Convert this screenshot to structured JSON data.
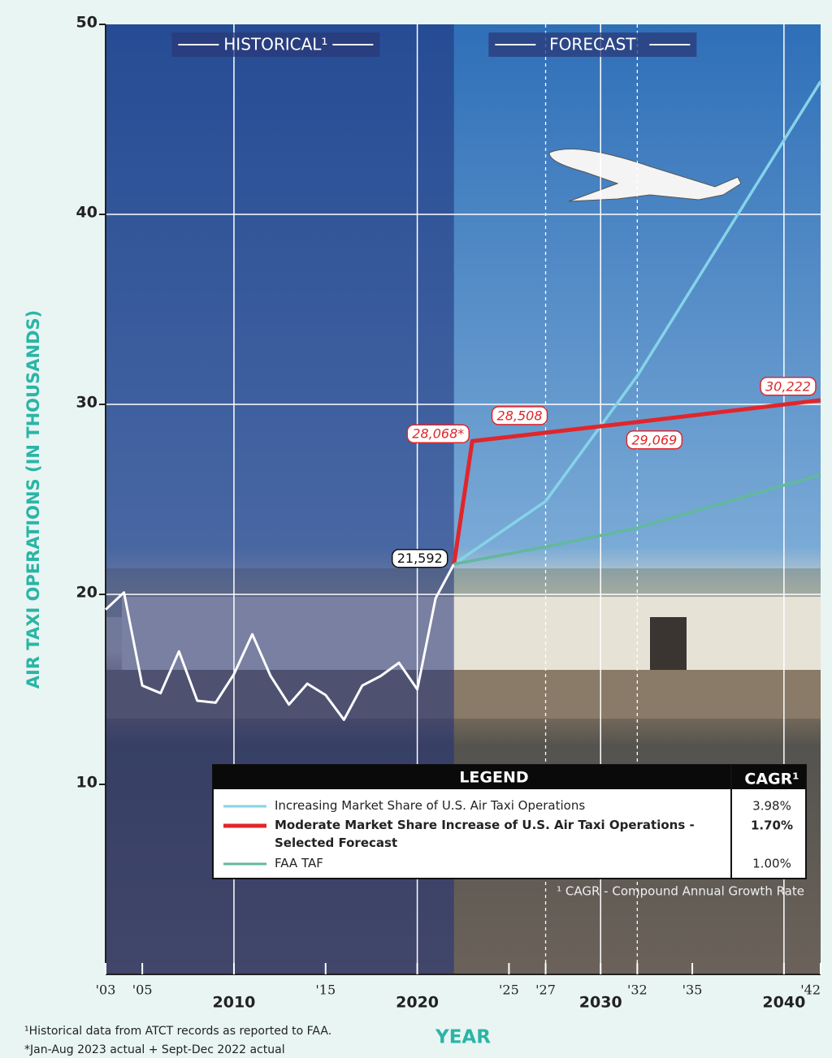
{
  "chart_data": {
    "type": "line",
    "y_label": "AIR TAXI OPERATIONS (IN THOUSANDS)",
    "x_label": "YEAR",
    "xlim": [
      2003,
      2042
    ],
    "ylim": [
      0,
      50
    ],
    "yticks": [
      10,
      20,
      30,
      40,
      50
    ],
    "xticks": [
      {
        "value": 2003,
        "label": "'03"
      },
      {
        "value": 2005,
        "label": "'05"
      },
      2010,
      {
        "value": 2015,
        "label": "'15"
      },
      2020,
      {
        "value": 2025,
        "label": "'25"
      },
      {
        "value": 2027,
        "label": "'27"
      },
      2030,
      {
        "value": 2032,
        "label": "'32"
      },
      {
        "value": 2035,
        "label": "'35"
      },
      2040,
      {
        "value": 2042,
        "label": "'42"
      }
    ],
    "y_grid": [
      20,
      30,
      40
    ],
    "x_grid_solid": [
      2010,
      2020,
      2030,
      2040
    ],
    "x_grid_dashed": [
      2027,
      2032
    ],
    "regions": [
      {
        "label": "HISTORICAL¹",
        "from": 2003,
        "to": 2022
      },
      {
        "label": "FORECAST",
        "from": 2022,
        "to": 2042
      }
    ],
    "historical": {
      "color": "#ffffff",
      "x": [
        2003,
        2004,
        2005,
        2006,
        2007,
        2008,
        2009,
        2010,
        2011,
        2012,
        2013,
        2014,
        2015,
        2016,
        2017,
        2018,
        2019,
        2020,
        2021,
        2022
      ],
      "values": [
        19.2,
        20.1,
        15.2,
        14.8,
        17.0,
        14.4,
        14.3,
        15.8,
        17.9,
        15.7,
        14.2,
        15.3,
        14.7,
        13.4,
        15.2,
        15.7,
        16.4,
        15.0,
        19.8,
        21.592
      ]
    },
    "legend_title": "LEGEND",
    "legend_cagr_title": "CAGR¹",
    "series": [
      {
        "name": "Increasing Market Share of U.S. Air Taxi Operations",
        "color": "#86d3e8",
        "cagr": "3.98%",
        "bold": false,
        "x": [
          2022,
          2027,
          2032,
          2042
        ],
        "values": [
          21.592,
          24.9,
          31.5,
          47.0
        ]
      },
      {
        "name": "Moderate Market Share Increase of U.S. Air Taxi Operations - Selected Forecast",
        "color": "#e0262b",
        "cagr": "1.70%",
        "bold": true,
        "x": [
          2022,
          2023,
          2027,
          2032,
          2042
        ],
        "values": [
          21.592,
          28.068,
          28.508,
          29.069,
          30.222
        ],
        "value_labels": [
          "21,592",
          "28,068*",
          "28,508",
          "29,069",
          "30,222"
        ]
      },
      {
        "name": "FAA TAF",
        "color": "#62b99c",
        "cagr": "1.00%",
        "bold": false,
        "x": [
          2022,
          2027,
          2032,
          2042
        ],
        "values": [
          21.592,
          22.5,
          23.5,
          26.3
        ]
      }
    ],
    "legend_footnote": "¹ CAGR - Compound Annual Growth Rate",
    "footnotes": [
      "¹Historical data from ATCT records as reported to FAA.",
      "*Jan-Aug 2023 actual + Sept-Dec 2022 actual"
    ]
  }
}
